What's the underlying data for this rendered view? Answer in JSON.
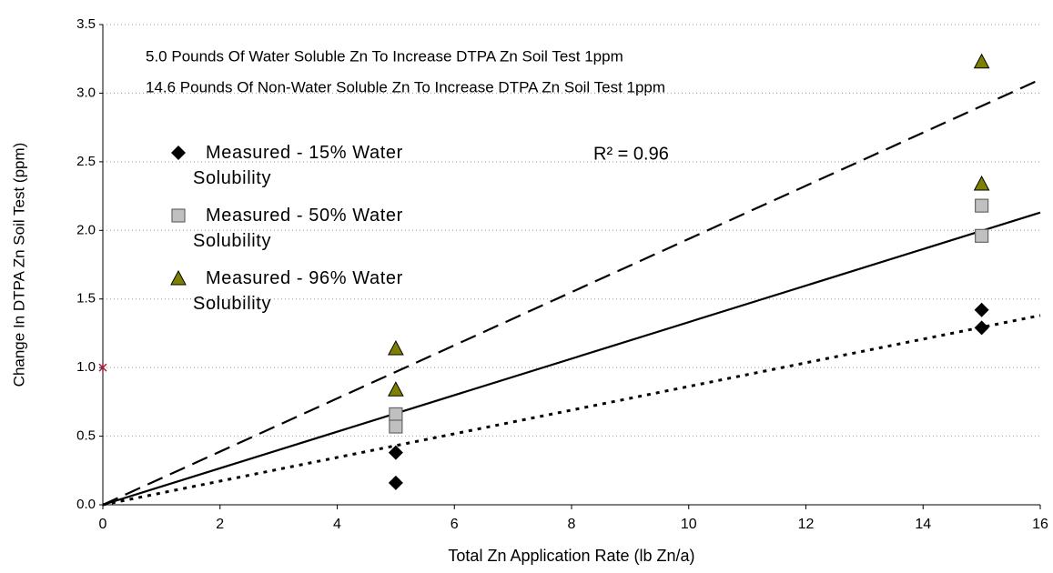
{
  "chart_data": {
    "type": "scatter",
    "xlabel": "Total Zn Application Rate (lb Zn/a)",
    "ylabel": "Change In DTPA Zn Soil Test (ppm)",
    "annotations": [
      "5.0  Pounds Of Water Soluble Zn To Increase DTPA Zn Soil Test 1ppm",
      "14.6  Pounds Of Non-Water Soluble Zn To Increase DTPA Zn Soil Test 1ppm",
      "R² = 0.96"
    ],
    "xlim": [
      0,
      16
    ],
    "ylim": [
      0,
      3.5
    ],
    "xticks": [
      0,
      2,
      4,
      6,
      8,
      10,
      12,
      14,
      16
    ],
    "yticks": [
      {
        "value": 0,
        "label": "0.0"
      },
      {
        "value": 0.5,
        "label": "0.5"
      },
      {
        "value": 1,
        "label": "1.0"
      },
      {
        "value": 1.5,
        "label": "1.5"
      },
      {
        "value": 2,
        "label": "2.0"
      },
      {
        "value": 2.5,
        "label": "2.5"
      },
      {
        "value": 3,
        "label": "3.0"
      },
      {
        "value": 3.5,
        "label": "3.5"
      }
    ],
    "grid": true,
    "series": [
      {
        "name": "Measured - 15% Water Solubility",
        "marker": "diamond",
        "color": "#000000",
        "x": [
          5,
          5,
          15,
          15
        ],
        "values": [
          0.38,
          0.16,
          1.42,
          1.29
        ]
      },
      {
        "name": "Measured - 50% Water Solubility",
        "marker": "square",
        "color": "#c0c0c0",
        "x": [
          5,
          5,
          15,
          15
        ],
        "values": [
          0.66,
          0.57,
          2.18,
          1.96
        ]
      },
      {
        "name": "Measured - 96% Water Solubility",
        "marker": "triangle",
        "color": "#808000",
        "x": [
          5,
          5,
          15,
          15
        ],
        "values": [
          1.14,
          0.84,
          3.23,
          2.34
        ]
      }
    ],
    "trendlines": [
      {
        "x": [
          0,
          16
        ],
        "values": [
          0,
          1.38
        ],
        "dash": "dotted"
      },
      {
        "x": [
          0,
          16
        ],
        "values": [
          0,
          2.13
        ],
        "dash": "solid"
      },
      {
        "x": [
          0,
          16
        ],
        "values": [
          0,
          3.1
        ],
        "dash": "dashed"
      }
    ],
    "extra_points": [
      {
        "x": [
          0
        ],
        "values": [
          1.0
        ],
        "color": "#a0203c",
        "marker": "star"
      }
    ]
  }
}
